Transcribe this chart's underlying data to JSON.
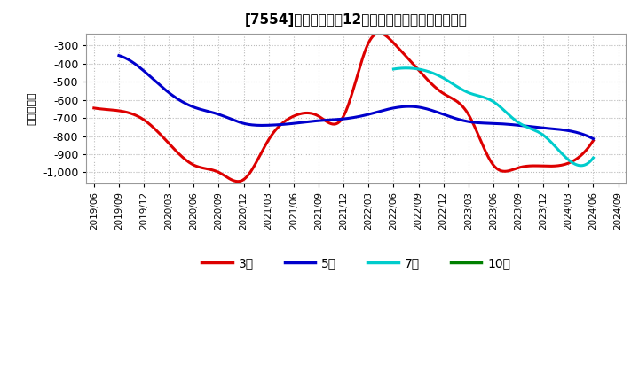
{
  "title": "[7554]　当期純利益12か月移動合計の平均値の推移",
  "ylabel": "（百万円）",
  "background_color": "#ffffff",
  "plot_background_color": "#ffffff",
  "grid_color": "#bbbbbb",
  "ylim": [
    -1060,
    -235
  ],
  "yticks": [
    -300,
    -400,
    -500,
    -600,
    -700,
    -800,
    -900,
    -1000
  ],
  "xtick_labels": [
    "2019/06",
    "2019/09",
    "2019/12",
    "2020/03",
    "2020/06",
    "2020/09",
    "2020/12",
    "2021/03",
    "2021/06",
    "2021/09",
    "2021/12",
    "2022/03",
    "2022/06",
    "2022/09",
    "2022/12",
    "2023/03",
    "2023/06",
    "2023/09",
    "2023/12",
    "2024/03",
    "2024/06",
    "2024/09"
  ],
  "series": {
    "3年": {
      "color": "#dd0000",
      "linewidth": 2.2,
      "data_x": [
        0,
        1,
        2,
        3,
        4,
        5,
        6,
        7,
        8,
        9,
        10,
        11,
        12,
        13,
        14,
        15,
        16,
        17,
        18,
        19,
        20
      ],
      "data_y": [
        -645,
        -660,
        -710,
        -840,
        -960,
        -1000,
        -1040,
        -820,
        -690,
        -690,
        -690,
        -285,
        -285,
        -435,
        -565,
        -680,
        -960,
        -975,
        -965,
        -950,
        -825
      ]
    },
    "5年": {
      "color": "#0000cc",
      "linewidth": 2.2,
      "data_x": [
        1,
        2,
        3,
        4,
        5,
        6,
        7,
        8,
        9,
        10,
        11,
        12,
        13,
        14,
        15,
        16,
        17,
        18,
        19,
        20
      ],
      "data_y": [
        -355,
        -440,
        -560,
        -640,
        -680,
        -730,
        -740,
        -730,
        -715,
        -705,
        -680,
        -645,
        -640,
        -680,
        -720,
        -730,
        -740,
        -755,
        -770,
        -815
      ]
    },
    "7年": {
      "color": "#00cccc",
      "linewidth": 2.2,
      "data_x": [
        12,
        13,
        14,
        15,
        16,
        17,
        18,
        19,
        20
      ],
      "data_y": [
        -430,
        -430,
        -480,
        -560,
        -610,
        -725,
        -795,
        -930,
        -920
      ]
    },
    "10年": {
      "color": "#008000",
      "linewidth": 2.2,
      "data_x": [],
      "data_y": []
    }
  },
  "legend_entries": [
    "3年",
    "5年",
    "7年",
    "10年"
  ],
  "legend_colors": [
    "#dd0000",
    "#0000cc",
    "#00cccc",
    "#008000"
  ]
}
